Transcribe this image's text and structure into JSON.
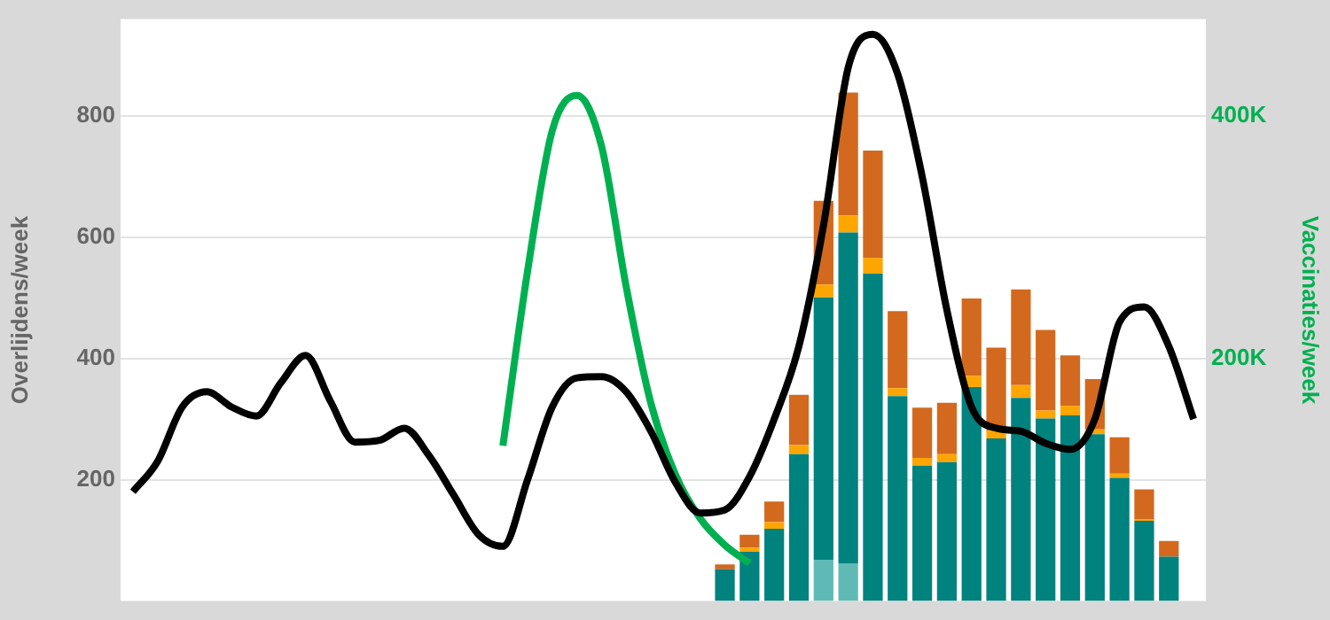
{
  "chart_data": {
    "type": "bar",
    "ylabel": "Overlijdens/week",
    "y2label": "Vaccinaties/week",
    "stacked": true,
    "grid": "y",
    "tick_labels": "y",
    "categories": [
      null,
      null,
      null,
      null,
      null,
      null,
      null,
      null,
      null,
      null,
      null,
      null,
      null,
      null,
      null,
      null,
      null,
      null,
      null,
      null,
      null,
      null,
      null,
      null,
      null,
      null,
      null,
      null,
      null,
      null,
      null,
      null,
      null,
      null,
      null,
      null,
      null,
      null,
      null,
      null,
      null,
      null,
      null,
      null
    ],
    "ylim": [
      0,
      960
    ],
    "yticks": [
      200,
      400,
      600,
      800
    ],
    "y2lim": [
      0,
      480000
    ],
    "y2ticks": [
      {
        "value": 200000,
        "label": "200K"
      },
      {
        "value": 400000,
        "label": "400K"
      }
    ],
    "series": [
      {
        "color": "#5fbab5",
        "values": [
          null,
          null,
          null,
          null,
          null,
          null,
          null,
          null,
          null,
          null,
          null,
          null,
          null,
          null,
          null,
          null,
          null,
          null,
          null,
          null,
          null,
          null,
          null,
          null,
          null,
          null,
          null,
          null,
          68,
          62,
          null,
          null,
          null,
          null,
          null,
          null,
          null,
          null,
          null,
          null,
          null,
          null,
          null,
          null
        ]
      },
      {
        "color": "#00827f",
        "values": [
          null,
          null,
          null,
          null,
          null,
          null,
          null,
          null,
          null,
          null,
          null,
          null,
          null,
          null,
          null,
          null,
          null,
          null,
          null,
          null,
          null,
          null,
          null,
          null,
          52,
          81,
          119,
          242,
          433,
          546,
          540,
          338,
          223,
          229,
          353,
          268,
          335,
          301,
          306,
          275,
          203,
          132,
          73,
          null
        ]
      },
      {
        "color": "#ffa500",
        "values": [
          null,
          null,
          null,
          null,
          null,
          null,
          null,
          null,
          null,
          null,
          null,
          null,
          null,
          null,
          null,
          null,
          null,
          null,
          null,
          null,
          null,
          null,
          null,
          null,
          null,
          7,
          11,
          15,
          21,
          28,
          26,
          13,
          13,
          13,
          18,
          13,
          21,
          13,
          16,
          8,
          7,
          3,
          null,
          null
        ]
      },
      {
        "color": "#d2691e",
        "values": [
          null,
          null,
          null,
          null,
          null,
          null,
          null,
          null,
          null,
          null,
          null,
          null,
          null,
          null,
          null,
          null,
          null,
          null,
          null,
          null,
          null,
          null,
          null,
          null,
          8,
          21,
          34,
          83,
          138,
          203,
          177,
          127,
          83,
          85,
          128,
          137,
          158,
          133,
          83,
          83,
          60,
          49,
          26,
          null
        ]
      },
      {
        "type": "line",
        "color": "#000000",
        "values": [
          180,
          230,
          320,
          345,
          320,
          305,
          360,
          405,
          330,
          262,
          265,
          285,
          240,
          175,
          110,
          90,
          200,
          320,
          368,
          370,
          345,
          280,
          195,
          145,
          150,
          205,
          300,
          420,
          620,
          880,
          935,
          870,
          700,
          480,
          320,
          285,
          280,
          260,
          250,
          300,
          460,
          485,
          420,
          300
        ]
      },
      {
        "type": "line",
        "axis": "y2",
        "color": "#00b050",
        "values": [
          null,
          null,
          null,
          null,
          null,
          null,
          null,
          null,
          null,
          null,
          null,
          null,
          null,
          null,
          null,
          128000,
          272000,
          388000,
          417000,
          375000,
          259000,
          163000,
          104000,
          68000,
          46000,
          31000,
          null,
          null,
          null,
          null,
          null,
          null,
          null,
          null,
          null,
          null,
          null,
          null,
          null,
          null,
          null,
          null,
          null,
          null
        ]
      }
    ]
  }
}
